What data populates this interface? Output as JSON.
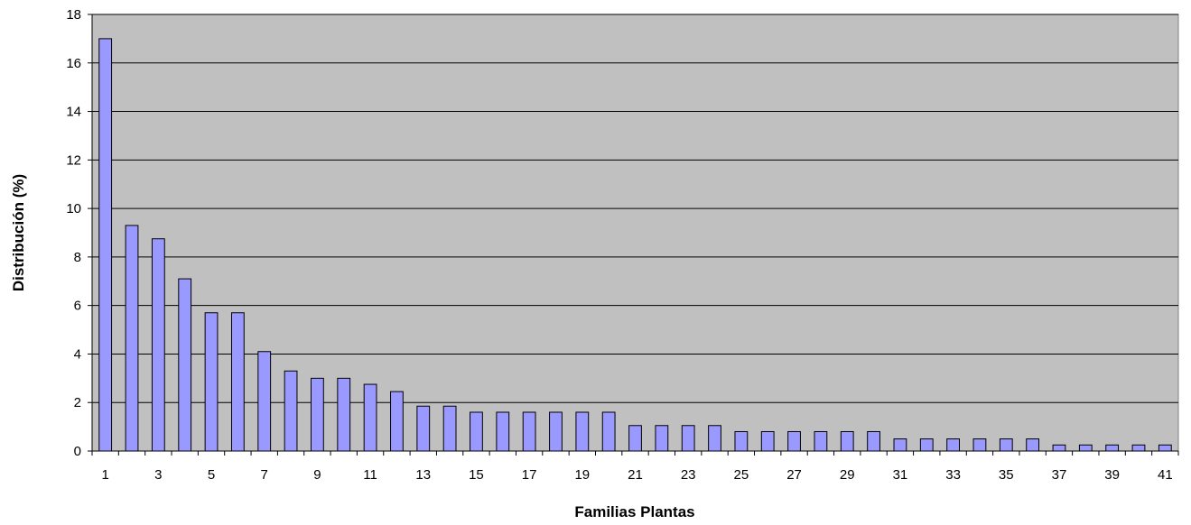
{
  "chart_data": {
    "type": "bar",
    "xlabel": "Familias Plantas",
    "ylabel": "Distribución (%)",
    "ylim": [
      0,
      18
    ],
    "y_ticks": [
      0,
      2,
      4,
      6,
      8,
      10,
      12,
      14,
      16,
      18
    ],
    "x_tick_labels": [
      "1",
      "3",
      "5",
      "7",
      "9",
      "11",
      "13",
      "15",
      "17",
      "19",
      "21",
      "23",
      "25",
      "27",
      "29",
      "31",
      "33",
      "35",
      "37",
      "39",
      "41"
    ],
    "categories": [
      "1",
      "2",
      "3",
      "4",
      "5",
      "6",
      "7",
      "8",
      "9",
      "10",
      "11",
      "12",
      "13",
      "14",
      "15",
      "16",
      "17",
      "18",
      "19",
      "20",
      "21",
      "22",
      "23",
      "24",
      "25",
      "26",
      "27",
      "28",
      "29",
      "30",
      "31",
      "32",
      "33",
      "34",
      "35",
      "36",
      "37",
      "38",
      "39",
      "40",
      "41"
    ],
    "values": [
      17.0,
      9.3,
      8.75,
      7.1,
      5.7,
      5.7,
      4.1,
      3.3,
      3.0,
      3.0,
      2.75,
      2.45,
      1.85,
      1.85,
      1.6,
      1.6,
      1.6,
      1.6,
      1.6,
      1.6,
      1.05,
      1.05,
      1.05,
      1.05,
      0.8,
      0.8,
      0.8,
      0.8,
      0.8,
      0.8,
      0.5,
      0.5,
      0.5,
      0.5,
      0.5,
      0.5,
      0.25,
      0.25,
      0.25,
      0.25,
      0.25
    ],
    "grid": true,
    "legend": "none",
    "colors": {
      "bar_fill": "#9999FF",
      "bar_stroke": "#000000",
      "plot_background": "#C0C0C0",
      "gridline": "#000000"
    }
  }
}
